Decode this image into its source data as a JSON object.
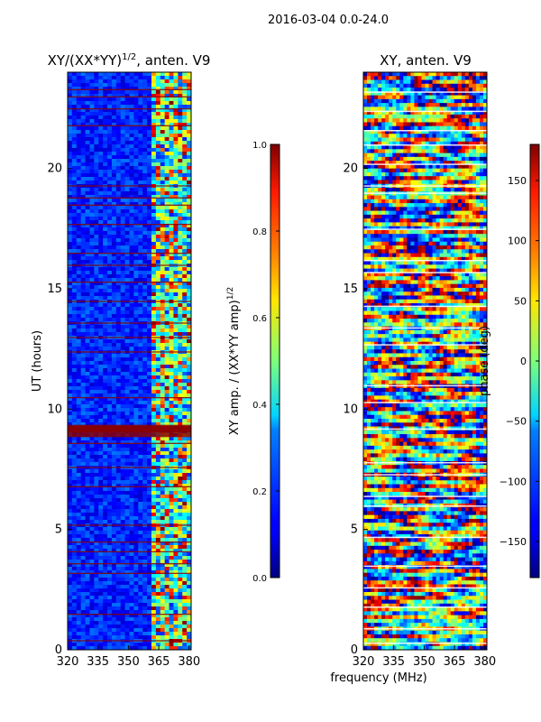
{
  "figure": {
    "suptitle": "2016-03-04 0.0-24.0",
    "shared_xlabel": "frequency (MHz)"
  },
  "chart_data": [
    {
      "type": "heatmap",
      "title": "XY/(XX*YY)",
      "title_exponent": "1/2",
      "title_suffix": ", anten. V9",
      "xlabel": "frequency (MHz)",
      "ylabel": "UT (hours)",
      "xlim": [
        320,
        381
      ],
      "ylim": [
        0,
        24
      ],
      "xticks": [
        320,
        335,
        350,
        365,
        380
      ],
      "yticks": [
        0,
        5,
        10,
        15,
        20
      ],
      "colormap": "jet",
      "colorbar": {
        "label": "XY amp. / (XX*YY amp)",
        "label_exponent": "1/2",
        "range": [
          0.0,
          1.0
        ],
        "ticks": [
          "0.0",
          "0.2",
          "0.4",
          "0.6",
          "0.8",
          "1.0"
        ],
        "tick_values": [
          0.0,
          0.2,
          0.4,
          0.6,
          0.8,
          1.0
        ]
      }
    },
    {
      "type": "heatmap",
      "title": "XY, anten. V9",
      "xlabel": "frequency (MHz)",
      "ylabel": "",
      "xlim": [
        320,
        381
      ],
      "ylim": [
        0,
        24
      ],
      "xticks": [
        320,
        335,
        350,
        365,
        380
      ],
      "yticks": [
        0,
        5,
        10,
        15,
        20
      ],
      "colormap": "jet",
      "colorbar": {
        "label": "phase (deg)",
        "range": [
          -180,
          180
        ],
        "ticks": [
          "150",
          "100",
          "50",
          "0",
          "−50",
          "−100",
          "−150"
        ],
        "tick_values": [
          150,
          100,
          50,
          0,
          -50,
          -100,
          -150
        ]
      }
    }
  ]
}
